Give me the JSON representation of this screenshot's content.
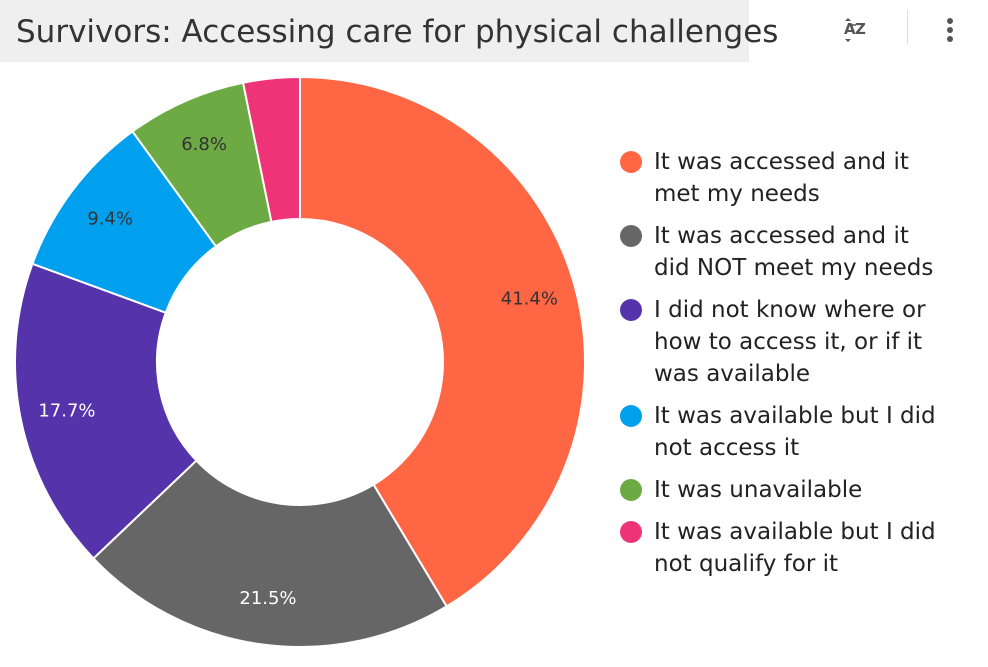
{
  "header": {
    "title": "Survivors: Accessing care for physical challenges",
    "sort_icon": "sort-az-icon",
    "menu_icon": "more-vertical-icon"
  },
  "chart_data": {
    "type": "pie",
    "donut": true,
    "title": "Survivors: Accessing care for physical challenges",
    "legend_position": "right",
    "slices": [
      {
        "label": "It was accessed and it\nmet my needs",
        "value": 41.4,
        "display": "41.4%",
        "color": "#ff6644",
        "label_color": "#333333"
      },
      {
        "label": "It was accessed and it\ndid NOT meet my needs",
        "value": 21.5,
        "display": "21.5%",
        "color": "#666666",
        "label_color": "#ffffff"
      },
      {
        "label": "I did not know where or\nhow to access it, or if it\nwas available",
        "value": 17.7,
        "display": "17.7%",
        "color": "#5533aa",
        "label_color": "#ffffff"
      },
      {
        "label": "It was available but I did\nnot access it",
        "value": 9.4,
        "display": "9.4%",
        "color": "#00a0ee",
        "label_color": "#333333"
      },
      {
        "label": "It was unavailable",
        "value": 6.8,
        "display": "6.8%",
        "color": "#6daa44",
        "label_color": "#333333"
      },
      {
        "label": "It was available but I did\nnot qualify for it",
        "value": 3.2,
        "display": "",
        "color": "#ee3377",
        "label_color": "#ffffff"
      }
    ]
  }
}
